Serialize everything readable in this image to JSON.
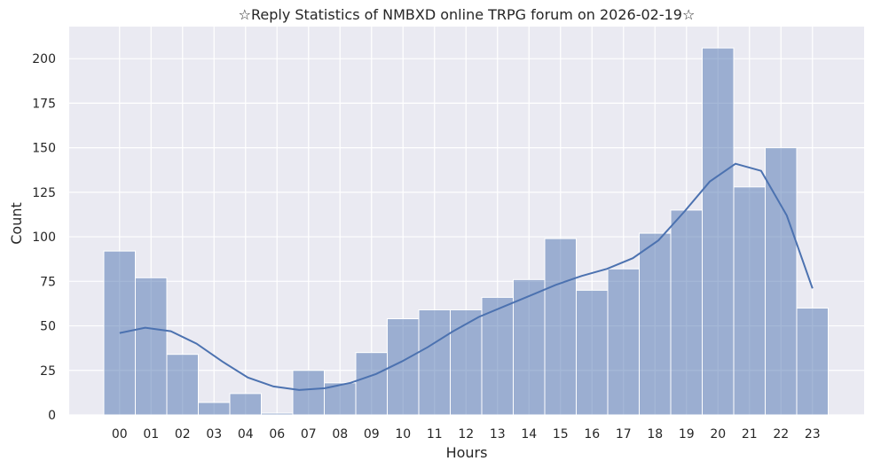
{
  "chart_data": {
    "type": "bar",
    "title": "☆Reply Statistics of NMBXD online TRPG forum on 2026-02-19☆",
    "xlabel": "Hours",
    "ylabel": "Count",
    "categories": [
      "00",
      "01",
      "02",
      "03",
      "04",
      "06",
      "07",
      "08",
      "09",
      "10",
      "11",
      "12",
      "13",
      "14",
      "15",
      "16",
      "17",
      "18",
      "19",
      "20",
      "21",
      "22",
      "23"
    ],
    "values": [
      92,
      77,
      34,
      7,
      12,
      1,
      25,
      18,
      35,
      54,
      59,
      59,
      66,
      76,
      99,
      70,
      82,
      102,
      115,
      206,
      128,
      150,
      60
    ],
    "kde": [
      46,
      49,
      47,
      40,
      30,
      21,
      16,
      14,
      15,
      18,
      23,
      30,
      38,
      47,
      55,
      61,
      67,
      73,
      78,
      82,
      88,
      98,
      114,
      131,
      141,
      137,
      112,
      71
    ],
    "ylim": [
      0,
      218
    ],
    "yticks": [
      0,
      25,
      50,
      75,
      100,
      125,
      150,
      175,
      200
    ],
    "grid": true,
    "colors": {
      "bar": "#4c72b0",
      "background": "#eaeaf2",
      "grid": "#ffffff",
      "kde": "#4c72b0"
    }
  }
}
